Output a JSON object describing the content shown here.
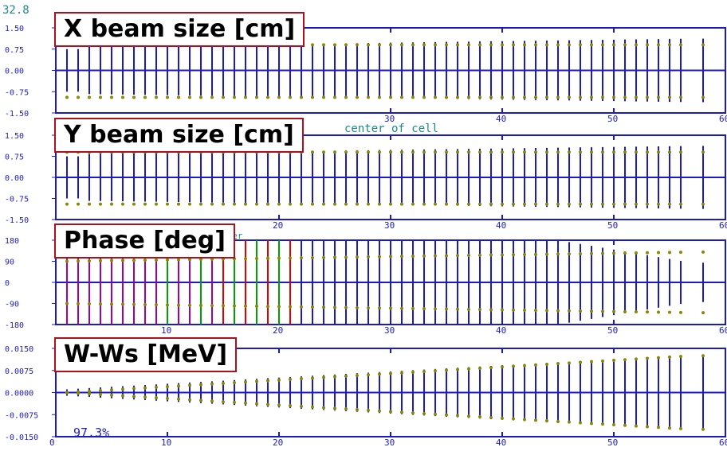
{
  "header_value": "32.8",
  "transmission_label": "97.3%",
  "colors": {
    "axis": "#1a1acc",
    "envelope": "#8a8a00",
    "particles": "#888888",
    "box_border": "#b0101a",
    "teal_text": "#1a8a8a",
    "red": "#e00000",
    "green": "#00a000",
    "magenta": "#a000a0"
  },
  "chart_data": [
    {
      "type": "scatter",
      "title": "X beam size [cm]",
      "x_ticks": [
        "30",
        "40",
        "50",
        "60"
      ],
      "ylim": [
        -1.5,
        1.5
      ],
      "y_ticks": [
        "1.50",
        "0.75",
        "0.00",
        "-0.75",
        "-1.50"
      ],
      "xlim": [
        0,
        60
      ],
      "cells_x": [
        1,
        2,
        3,
        4,
        5,
        6,
        7,
        8,
        9,
        10,
        11,
        12,
        13,
        14,
        15,
        16,
        17,
        18,
        19,
        20,
        21,
        22,
        23,
        24,
        25,
        26,
        27,
        28,
        29,
        30,
        31,
        32,
        33,
        34,
        35,
        36,
        37,
        38,
        39,
        40,
        41,
        42,
        43,
        44,
        45,
        46,
        47,
        48,
        49,
        50,
        51,
        52,
        53,
        54,
        55,
        56,
        58
      ],
      "envelope_upper": 0.9,
      "envelope_lower": -0.95,
      "annotation": "center of cell"
    },
    {
      "type": "scatter",
      "title": "Y beam size [cm]",
      "x_ticks": [
        "20",
        "30",
        "40",
        "50",
        "60"
      ],
      "ylim": [
        -1.5,
        1.5
      ],
      "y_ticks": [
        "1.50",
        "0.75",
        "0.00",
        "-0.75",
        "-1.50"
      ],
      "xlim": [
        0,
        60
      ],
      "envelope_upper": 0.9,
      "envelope_lower": -0.95,
      "annotation": "mber"
    },
    {
      "type": "scatter",
      "title": "Phase [deg]",
      "x_ticks": [
        "10",
        "20",
        "30",
        "40",
        "50",
        "60"
      ],
      "ylim": [
        -180,
        180
      ],
      "y_ticks": [
        "180",
        "90",
        "0",
        "-90",
        "-180"
      ],
      "xlim": [
        0,
        60
      ]
    },
    {
      "type": "scatter",
      "title": "W-Ws [MeV]",
      "x_ticks": [
        "0",
        "10",
        "20",
        "30",
        "40",
        "50",
        "60"
      ],
      "ylim": [
        -0.015,
        0.015
      ],
      "y_ticks": [
        "0.0150",
        "0.0075",
        "0.0000",
        "-0.0075",
        "-0.0150"
      ],
      "xlim": [
        0,
        60
      ],
      "envelope_end": 0.0125
    }
  ]
}
